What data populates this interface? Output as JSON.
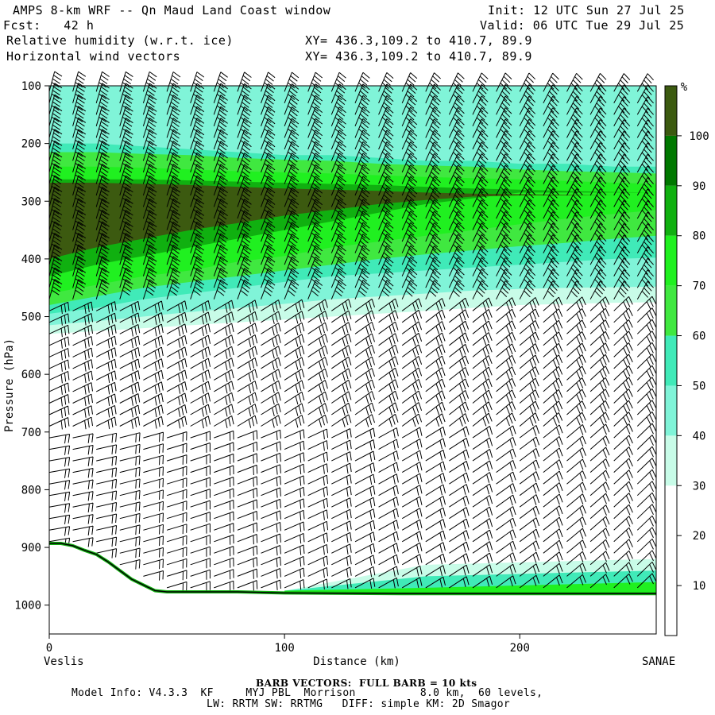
{
  "header": {
    "title": "AMPS 8-km WRF -- Qn Maud Land Coast window",
    "fcst": "Fcst:   42 h",
    "init": "Init: 12 UTC Sun 27 Jul 25",
    "valid": "Valid: 06 UTC Tue 29 Jul 25",
    "field1": "Relative humidity (w.r.t. ice)",
    "field2": "Horizontal wind vectors",
    "xy1": "XY= 436.3,109.2 to 410.7, 89.9",
    "xy2": "XY= 436.3,109.2 to 410.7, 89.9"
  },
  "footer": {
    "left_station": "Veslis",
    "right_station": "SANAE",
    "barb_note": "BARB VECTORS:  FULL BARB = 10 kts",
    "model_line1": "Model Info: V4.3.3  KF     MYJ PBL  Morrison          8.0 km,  60 levels,",
    "model_line2": "LW: RRTM SW: RRTMG   DIFF: simple KM: 2D Smagor"
  },
  "colors": {
    "c10": "#ffffff",
    "c20": "#ffffff",
    "c30": "#ffffff",
    "c40": "#c8fce8",
    "c50": "#80f4d8",
    "c60": "#40eab8",
    "c70": "#40e840",
    "c80": "#20f020",
    "c90": "#10b010",
    "c100": "#007800",
    "cmax": "#3c5a10",
    "terrain": "#000000"
  },
  "chart_data": {
    "type": "heatmap",
    "title": "Relative humidity (w.r.t. ice)",
    "xlabel": "Distance (km)",
    "ylabel": "Pressure (hPa)",
    "xlim": [
      0,
      258
    ],
    "ylim": [
      100,
      1050
    ],
    "x_ticks": [
      0,
      100,
      200
    ],
    "y_ticks": [
      100,
      200,
      300,
      400,
      500,
      600,
      700,
      800,
      900,
      1000
    ],
    "y_reversed": true,
    "colorbar": {
      "unit": "%",
      "levels": [
        10,
        20,
        30,
        40,
        50,
        60,
        70,
        80,
        90,
        100
      ],
      "colors": [
        "#ffffff",
        "#ffffff",
        "#ffffff",
        "#c8fce8",
        "#80f4d8",
        "#40eab8",
        "#40e840",
        "#20f020",
        "#10b010",
        "#007800",
        "#3c5a10"
      ]
    },
    "rh_layers": [
      {
        "name": ">=40",
        "top": [
          100,
          100,
          100,
          100,
          100,
          100,
          100,
          100,
          100,
          100,
          100,
          100,
          100,
          100
        ],
        "bottom": [
          530,
          525,
          520,
          515,
          510,
          505,
          500,
          495,
          490,
          485,
          480,
          478,
          476,
          475
        ]
      },
      {
        "name": ">=50",
        "top": [
          100,
          100,
          100,
          100,
          100,
          100,
          100,
          100,
          100,
          100,
          100,
          100,
          100,
          100
        ],
        "bottom": [
          515,
          508,
          500,
          492,
          485,
          478,
          470,
          465,
          460,
          455,
          452,
          450,
          449,
          448
        ]
      },
      {
        "name": ">=60",
        "top": [
          200,
          200,
          205,
          210,
          215,
          220,
          220,
          225,
          230,
          230,
          235,
          235,
          240,
          240
        ],
        "bottom": [
          495,
          485,
          470,
          460,
          450,
          440,
          430,
          425,
          420,
          415,
          410,
          405,
          400,
          398
        ]
      },
      {
        "name": ">=70",
        "top": [
          215,
          215,
          218,
          220,
          225,
          228,
          230,
          235,
          238,
          240,
          245,
          248,
          250,
          252
        ],
        "bottom": [
          480,
          465,
          450,
          440,
          430,
          420,
          410,
          400,
          392,
          385,
          378,
          372,
          365,
          360
        ]
      },
      {
        "name": ">=80",
        "top": [
          240,
          240,
          242,
          245,
          248,
          250,
          252,
          255,
          258,
          260,
          262,
          265,
          268,
          270
        ],
        "bottom": [
          460,
          445,
          430,
          420,
          405,
          395,
          380,
          370,
          360,
          350,
          340,
          330,
          322,
          315
        ]
      },
      {
        "name": ">=90",
        "top": [
          262,
          262,
          262,
          264,
          266,
          268,
          270,
          272,
          275,
          278,
          280,
          282,
          284,
          285
        ],
        "bottom": [
          430,
          410,
          395,
          380,
          365,
          350,
          335,
          320,
          305,
          295,
          285,
          285,
          285,
          285
        ]
      },
      {
        "name": ">=100",
        "top": [
          268,
          268,
          270,
          272,
          275,
          278,
          280,
          282,
          285,
          287,
          288,
          289,
          290,
          290
        ],
        "bottom": [
          400,
          380,
          365,
          350,
          338,
          325,
          315,
          305,
          298,
          292,
          290,
          290,
          290,
          290
        ]
      }
    ],
    "layer_x": [
      0,
      20,
      40,
      60,
      80,
      100,
      120,
      140,
      160,
      180,
      200,
      220,
      240,
      258
    ],
    "near_surface_moist": {
      "levels": [
        0.4,
        0.6,
        0.8
      ],
      "start_km": 100
    },
    "terrain": {
      "x": [
        0,
        5,
        10,
        15,
        20,
        25,
        30,
        35,
        40,
        45,
        50,
        60,
        80,
        100,
        150,
        200,
        258
      ],
      "p": [
        893,
        893,
        897,
        905,
        912,
        925,
        940,
        955,
        965,
        975,
        977,
        977,
        977,
        979,
        980,
        980,
        980
      ]
    },
    "wind_barbs": {
      "x_km": [
        0,
        10,
        20,
        30,
        40,
        50,
        60,
        70,
        80,
        90,
        100,
        110,
        120,
        130,
        140,
        150,
        160,
        170,
        180,
        190,
        200,
        210,
        220,
        230,
        240,
        250
      ],
      "p_levels": [
        110,
        130,
        150,
        170,
        190,
        210,
        230,
        250,
        270,
        290,
        310,
        330,
        350,
        370,
        390,
        410,
        430,
        450,
        470,
        490,
        510,
        530,
        550,
        570,
        590,
        610,
        630,
        650,
        670,
        690,
        710,
        730,
        750,
        770,
        790,
        810,
        830,
        850,
        870,
        890,
        910,
        930,
        950,
        970
      ],
      "unit": "kts"
    }
  }
}
